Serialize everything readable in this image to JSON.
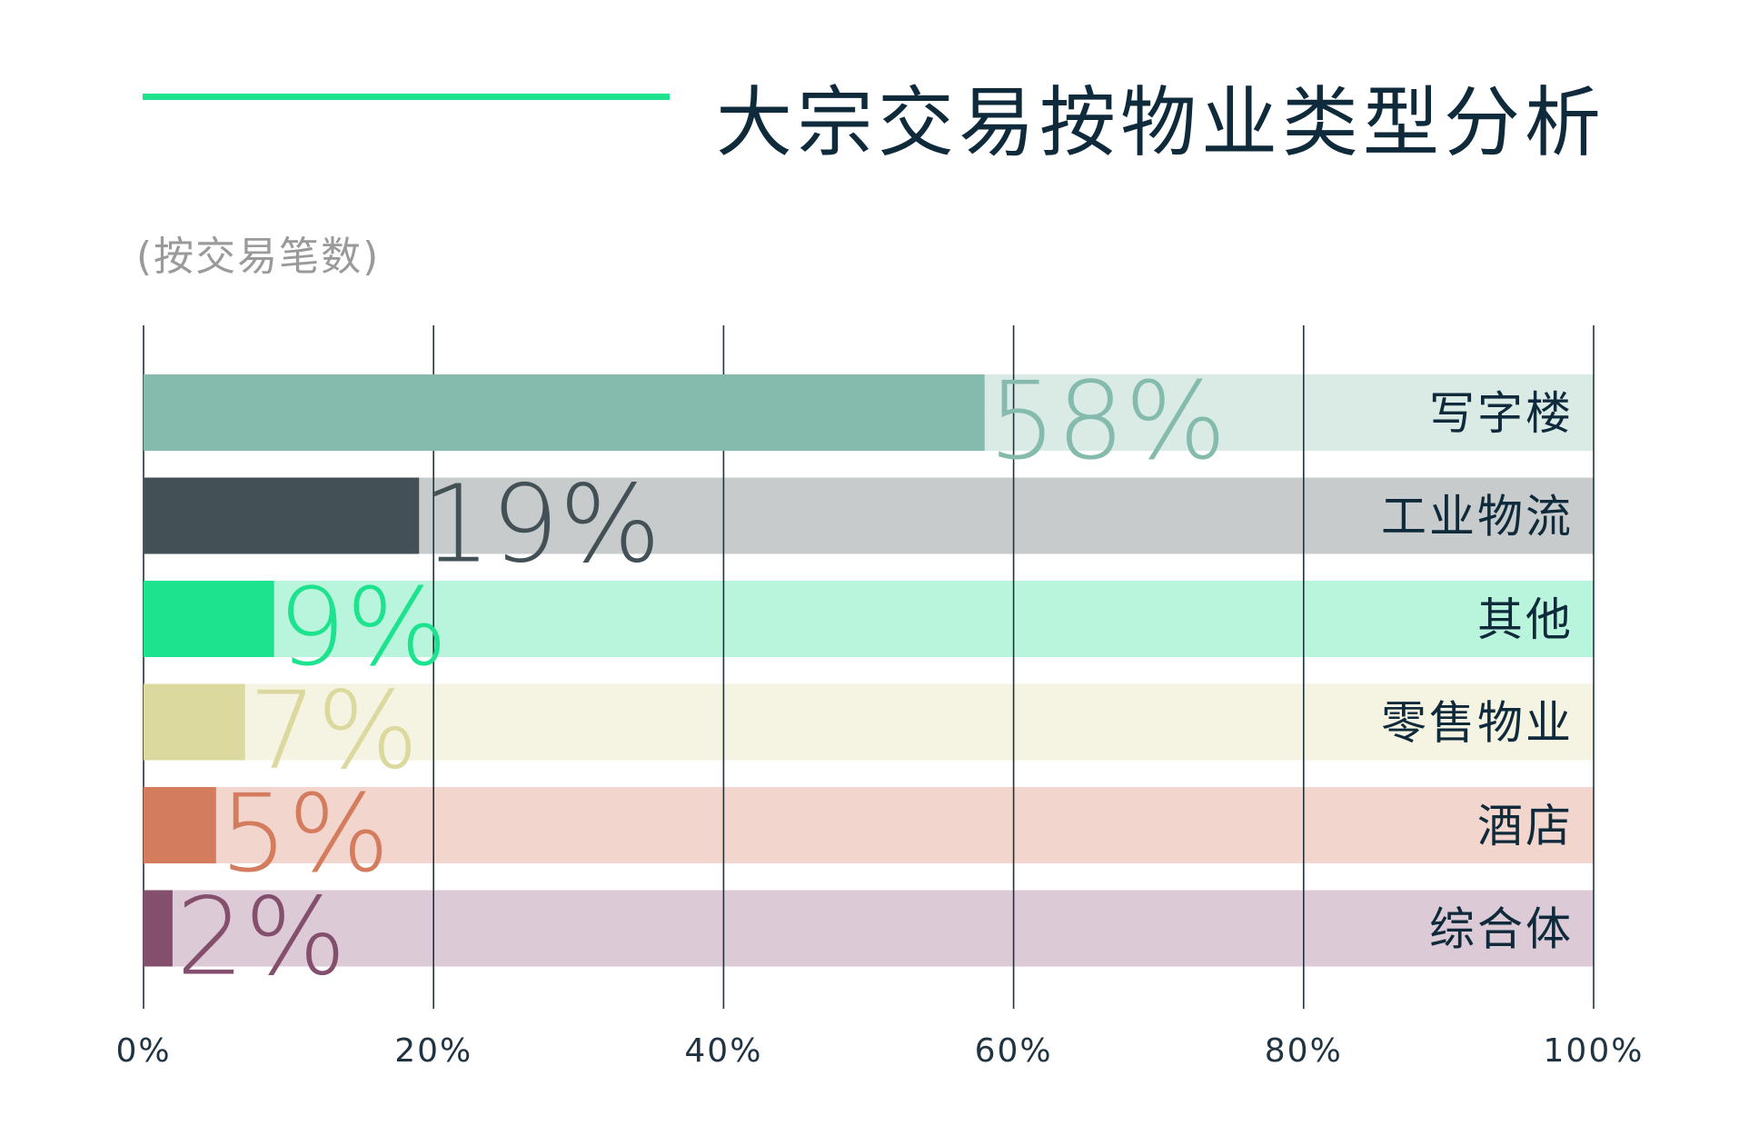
{
  "header": {
    "title": "大宗交易按物业类型分析",
    "subtitle": "(按交易笔数)",
    "accent_color": "#1de28e"
  },
  "chart_data": {
    "type": "bar",
    "orientation": "horizontal",
    "stacked_percent": true,
    "xlim": [
      0,
      100
    ],
    "x_ticks": [
      "0%",
      "20%",
      "40%",
      "60%",
      "80%",
      "100%"
    ],
    "grid": true,
    "legend": "none",
    "categories": [
      "写字楼",
      "工业物流",
      "其他",
      "零售物业",
      "酒店",
      "综合体"
    ],
    "values": [
      58,
      19,
      9,
      7,
      5,
      2
    ],
    "value_labels": [
      "58%",
      "19%",
      "9%",
      "7%",
      "5%",
      "2%"
    ],
    "colors": [
      "#85bbad",
      "#435156",
      "#1de28e",
      "#dcd99f",
      "#d47c5e",
      "#834f6d"
    ],
    "track_colors": [
      "#daeae5",
      "#c7cbcc",
      "#b9f5dc",
      "#f5f3e1",
      "#f2d5cc",
      "#dccad6"
    ],
    "label_colors": [
      "#85bbad",
      "#435156",
      "#1de28e",
      "#dcd99f",
      "#d47c5e",
      "#834f6d"
    ]
  }
}
